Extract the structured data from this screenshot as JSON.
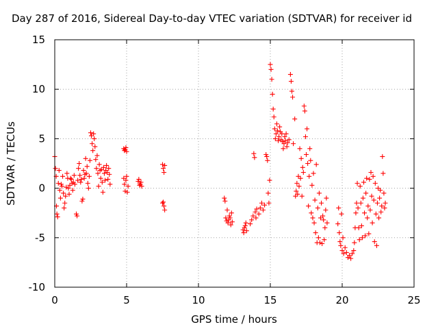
{
  "chart_data": {
    "type": "scatter",
    "title": "Day 287 of 2016, Sidereal Day-to-day VTEC variation (SDTVAR) for receiver id",
    "xlabel": "GPS time / hours",
    "ylabel": "SDTVAR / TECUs",
    "xlim": [
      0,
      25
    ],
    "ylim": [
      -10,
      15
    ],
    "xticks": [
      0,
      5,
      10,
      15,
      20,
      25
    ],
    "yticks": [
      -10,
      -5,
      0,
      5,
      10,
      15
    ],
    "xtick_labels": [
      "0",
      "5",
      "10",
      "15",
      "20",
      "25"
    ],
    "ytick_labels": [
      "-10",
      "-5",
      "0",
      "5",
      "10",
      "15"
    ],
    "grid": true,
    "marker": "plus",
    "color": "#ff0000",
    "series": [
      {
        "name": "SDTVAR",
        "points": [
          [
            0.0,
            3.2
          ],
          [
            0.05,
            2.0
          ],
          [
            0.1,
            1.2
          ],
          [
            0.12,
            -1.8
          ],
          [
            0.15,
            -2.6
          ],
          [
            0.2,
            -2.9
          ],
          [
            0.25,
            0.5
          ],
          [
            0.3,
            1.8
          ],
          [
            0.35,
            -0.2
          ],
          [
            0.4,
            -1.0
          ],
          [
            0.45,
            0.4
          ],
          [
            0.5,
            0.2
          ],
          [
            0.55,
            1.2
          ],
          [
            0.6,
            -0.5
          ],
          [
            0.65,
            -2.0
          ],
          [
            0.7,
            -1.5
          ],
          [
            0.75,
            -0.8
          ],
          [
            0.8,
            0.1
          ],
          [
            0.85,
            1.5
          ],
          [
            0.9,
            1.0
          ],
          [
            0.95,
            0.0
          ],
          [
            1.0,
            -0.6
          ],
          [
            1.05,
            0.3
          ],
          [
            1.1,
            1.0
          ],
          [
            1.15,
            0.9
          ],
          [
            1.2,
            0.5
          ],
          [
            1.25,
            -0.2
          ],
          [
            1.3,
            0.6
          ],
          [
            1.35,
            1.3
          ],
          [
            1.4,
            0.4
          ],
          [
            1.5,
            -2.6
          ],
          [
            1.55,
            -2.8
          ],
          [
            1.6,
            0.8
          ],
          [
            1.65,
            2.0
          ],
          [
            1.7,
            2.5
          ],
          [
            1.75,
            1.3
          ],
          [
            1.8,
            0.6
          ],
          [
            1.85,
            0.9
          ],
          [
            1.9,
            -1.3
          ],
          [
            1.95,
            -1.1
          ],
          [
            2.0,
            1.8
          ],
          [
            2.05,
            1.0
          ],
          [
            2.1,
            1.4
          ],
          [
            2.15,
            3.0
          ],
          [
            2.2,
            1.5
          ],
          [
            2.25,
            2.2
          ],
          [
            2.3,
            0.5
          ],
          [
            2.35,
            0.0
          ],
          [
            2.4,
            1.2
          ],
          [
            2.45,
            2.8
          ],
          [
            2.5,
            5.6
          ],
          [
            2.55,
            5.3
          ],
          [
            2.6,
            4.5
          ],
          [
            2.65,
            3.8
          ],
          [
            2.7,
            5.5
          ],
          [
            2.75,
            5.0
          ],
          [
            2.8,
            4.2
          ],
          [
            2.85,
            2.9
          ],
          [
            2.9,
            2.0
          ],
          [
            2.95,
            3.3
          ],
          [
            3.0,
            1.5
          ],
          [
            3.05,
            0.2
          ],
          [
            3.1,
            2.4
          ],
          [
            3.15,
            1.8
          ],
          [
            3.2,
            1.0
          ],
          [
            3.25,
            1.9
          ],
          [
            3.3,
            0.6
          ],
          [
            3.35,
            -0.4
          ],
          [
            3.4,
            2.1
          ],
          [
            3.45,
            1.5
          ],
          [
            3.5,
            0.8
          ],
          [
            3.55,
            1.8
          ],
          [
            3.6,
            2.3
          ],
          [
            3.65,
            1.6
          ],
          [
            3.7,
            0.9
          ],
          [
            3.75,
            2.0
          ],
          [
            3.8,
            1.4
          ],
          [
            3.85,
            0.4
          ],
          [
            4.8,
            4.0
          ],
          [
            4.85,
            3.8
          ],
          [
            4.9,
            3.9
          ],
          [
            4.95,
            4.1
          ],
          [
            5.0,
            3.7
          ],
          [
            4.8,
            1.0
          ],
          [
            4.85,
            0.4
          ],
          [
            4.9,
            -0.3
          ],
          [
            4.95,
            0.8
          ],
          [
            5.0,
            1.2
          ],
          [
            5.05,
            -0.4
          ],
          [
            5.1,
            0.2
          ],
          [
            5.8,
            0.7
          ],
          [
            5.85,
            0.9
          ],
          [
            5.9,
            0.3
          ],
          [
            5.95,
            0.4
          ],
          [
            6.0,
            0.6
          ],
          [
            6.05,
            0.2
          ],
          [
            7.5,
            2.4
          ],
          [
            7.55,
            2.0
          ],
          [
            7.6,
            1.6
          ],
          [
            7.65,
            2.3
          ],
          [
            7.55,
            -1.4
          ],
          [
            7.6,
            -1.8
          ],
          [
            7.65,
            -2.2
          ],
          [
            7.5,
            -1.5
          ],
          [
            11.8,
            -1.0
          ],
          [
            11.85,
            -1.3
          ],
          [
            11.9,
            -3.0
          ],
          [
            11.95,
            -3.3
          ],
          [
            12.0,
            -2.2
          ],
          [
            12.05,
            -3.5
          ],
          [
            12.1,
            -3.2
          ],
          [
            12.15,
            -2.8
          ],
          [
            12.2,
            -3.0
          ],
          [
            12.25,
            -3.7
          ],
          [
            12.3,
            -2.5
          ],
          [
            12.35,
            -3.4
          ],
          [
            13.1,
            -4.2
          ],
          [
            13.15,
            -4.5
          ],
          [
            13.2,
            -4.0
          ],
          [
            13.25,
            -3.8
          ],
          [
            13.3,
            -3.5
          ],
          [
            13.35,
            -4.3
          ],
          [
            13.6,
            -3.6
          ],
          [
            13.7,
            -3.2
          ],
          [
            13.8,
            -2.8
          ],
          [
            13.85,
            3.5
          ],
          [
            13.9,
            3.1
          ],
          [
            13.95,
            -2.4
          ],
          [
            14.0,
            -3.0
          ],
          [
            14.05,
            -2.1
          ],
          [
            14.2,
            -2.6
          ],
          [
            14.3,
            -2.0
          ],
          [
            14.4,
            -1.5
          ],
          [
            14.5,
            -2.2
          ],
          [
            14.6,
            -1.7
          ],
          [
            14.7,
            3.4
          ],
          [
            14.75,
            3.2
          ],
          [
            14.8,
            2.8
          ],
          [
            14.85,
            -0.5
          ],
          [
            14.9,
            -1.5
          ],
          [
            14.95,
            0.8
          ],
          [
            15.0,
            12.5
          ],
          [
            15.05,
            12.0
          ],
          [
            15.1,
            11.0
          ],
          [
            15.15,
            9.5
          ],
          [
            15.2,
            8.0
          ],
          [
            15.25,
            7.2
          ],
          [
            15.3,
            6.0
          ],
          [
            15.35,
            5.0
          ],
          [
            15.4,
            5.5
          ],
          [
            15.45,
            6.5
          ],
          [
            15.5,
            5.8
          ],
          [
            15.55,
            4.8
          ],
          [
            15.6,
            5.2
          ],
          [
            15.65,
            6.2
          ],
          [
            15.7,
            5.7
          ],
          [
            15.75,
            4.9
          ],
          [
            15.8,
            5.5
          ],
          [
            15.85,
            4.7
          ],
          [
            15.9,
            4.0
          ],
          [
            15.95,
            4.5
          ],
          [
            16.0,
            5.2
          ],
          [
            16.05,
            4.8
          ],
          [
            16.1,
            5.5
          ],
          [
            16.15,
            4.2
          ],
          [
            16.2,
            4.6
          ],
          [
            16.3,
            4.9
          ],
          [
            16.4,
            11.5
          ],
          [
            16.45,
            10.8
          ],
          [
            16.5,
            9.8
          ],
          [
            16.55,
            9.2
          ],
          [
            16.6,
            4.5
          ],
          [
            16.7,
            7.0
          ],
          [
            16.75,
            -0.8
          ],
          [
            16.8,
            -0.3
          ],
          [
            16.85,
            0.5
          ],
          [
            16.9,
            -0.6
          ],
          [
            16.95,
            1.2
          ],
          [
            17.0,
            0.2
          ],
          [
            17.05,
            4.0
          ],
          [
            17.1,
            1.0
          ],
          [
            17.15,
            3.0
          ],
          [
            17.2,
            -0.8
          ],
          [
            17.25,
            2.1
          ],
          [
            17.3,
            1.6
          ],
          [
            17.35,
            8.3
          ],
          [
            17.4,
            7.8
          ],
          [
            17.45,
            5.2
          ],
          [
            17.5,
            3.4
          ],
          [
            17.55,
            6.0
          ],
          [
            17.6,
            2.5
          ],
          [
            17.65,
            -1.8
          ],
          [
            17.7,
            1.2
          ],
          [
            17.75,
            4.0
          ],
          [
            17.8,
            2.8
          ],
          [
            17.85,
            -2.5
          ],
          [
            17.9,
            0.3
          ],
          [
            17.95,
            -3.0
          ],
          [
            18.0,
            1.5
          ],
          [
            18.05,
            -3.5
          ],
          [
            18.1,
            -1.2
          ],
          [
            18.15,
            -4.5
          ],
          [
            18.2,
            2.4
          ],
          [
            18.25,
            -5.5
          ],
          [
            18.3,
            -2.0
          ],
          [
            18.35,
            -5.0
          ],
          [
            18.4,
            -0.5
          ],
          [
            18.45,
            -5.5
          ],
          [
            18.5,
            -3.0
          ],
          [
            18.55,
            -1.5
          ],
          [
            18.6,
            -5.6
          ],
          [
            18.65,
            -2.8
          ],
          [
            18.7,
            -3.2
          ],
          [
            18.75,
            -5.2
          ],
          [
            18.8,
            -4.0
          ],
          [
            18.85,
            -2.2
          ],
          [
            18.9,
            -1.0
          ],
          [
            18.95,
            -3.5
          ],
          [
            19.7,
            -3.6
          ],
          [
            19.75,
            -2.0
          ],
          [
            19.8,
            -4.5
          ],
          [
            19.85,
            -5.4
          ],
          [
            19.9,
            -5.8
          ],
          [
            19.95,
            -2.6
          ],
          [
            20.0,
            -6.3
          ],
          [
            20.05,
            -5.0
          ],
          [
            20.1,
            -6.6
          ],
          [
            20.2,
            -6.0
          ],
          [
            20.3,
            -6.5
          ],
          [
            20.4,
            -7.0
          ],
          [
            20.5,
            -6.8
          ],
          [
            20.6,
            -7.1
          ],
          [
            20.7,
            -6.6
          ],
          [
            20.8,
            -6.3
          ],
          [
            20.85,
            -5.5
          ],
          [
            20.9,
            -4.0
          ],
          [
            20.95,
            -2.5
          ],
          [
            21.0,
            -1.5
          ],
          [
            21.05,
            0.5
          ],
          [
            21.1,
            -2.0
          ],
          [
            21.15,
            -4.0
          ],
          [
            21.2,
            -5.2
          ],
          [
            21.25,
            0.2
          ],
          [
            21.3,
            -1.5
          ],
          [
            21.35,
            -3.8
          ],
          [
            21.4,
            -5.0
          ],
          [
            21.45,
            -1.0
          ],
          [
            21.5,
            0.6
          ],
          [
            21.55,
            -2.5
          ],
          [
            21.6,
            -4.8
          ],
          [
            21.65,
            -0.5
          ],
          [
            21.7,
            1.0
          ],
          [
            21.75,
            -3.0
          ],
          [
            21.8,
            -1.8
          ],
          [
            21.85,
            -4.6
          ],
          [
            21.9,
            0.9
          ],
          [
            21.95,
            -2.2
          ],
          [
            22.0,
            1.6
          ],
          [
            22.05,
            -0.8
          ],
          [
            22.1,
            -3.5
          ],
          [
            22.15,
            1.2
          ],
          [
            22.2,
            -1.2
          ],
          [
            22.25,
            -5.4
          ],
          [
            22.3,
            0.5
          ],
          [
            22.35,
            -2.6
          ],
          [
            22.4,
            -5.8
          ],
          [
            22.45,
            -1.5
          ],
          [
            22.5,
            0.0
          ],
          [
            22.55,
            -3.0
          ],
          [
            22.6,
            -1.0
          ],
          [
            22.65,
            -0.2
          ],
          [
            22.7,
            -2.4
          ],
          [
            22.75,
            -1.8
          ],
          [
            22.8,
            3.2
          ],
          [
            22.85,
            1.5
          ],
          [
            22.9,
            -0.5
          ],
          [
            22.95,
            -2.0
          ],
          [
            23.0,
            -1.5
          ]
        ]
      }
    ]
  }
}
